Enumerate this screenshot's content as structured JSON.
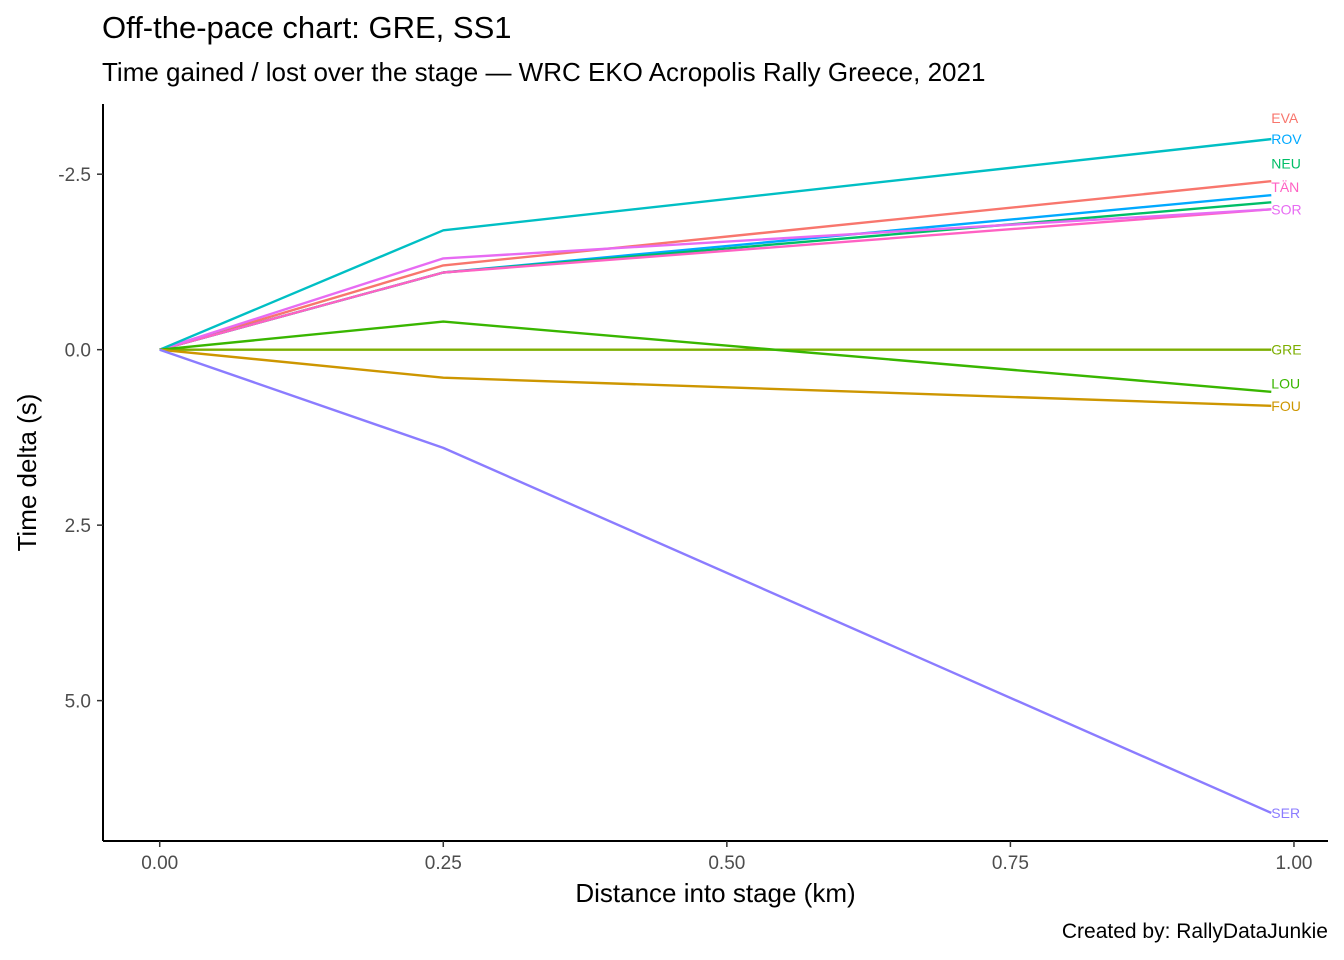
{
  "title": "Off-the-pace chart: GRE, SS1",
  "subtitle": "Time gained / lost over the stage — WRC EKO Acropolis Rally Greece, 2021",
  "caption": "Created by: RallyDataJunkie",
  "chart_data": {
    "type": "line",
    "xlabel": "Distance into stage (km)",
    "ylabel": "Time delta (s)",
    "xlim": [
      -0.05,
      1.03
    ],
    "ylim": [
      7.0,
      -3.5
    ],
    "y_reversed": true,
    "x_ticks": [
      0,
      0.25,
      0.5,
      0.75,
      1.0
    ],
    "x_tick_labels": [
      "0.00",
      "0.25",
      "0.50",
      "0.75",
      "1.00"
    ],
    "y_ticks": [
      -2.5,
      0,
      2.5,
      5.0
    ],
    "y_tick_labels": [
      "-2.5",
      "0.0",
      "2.5",
      "5.0"
    ],
    "grid": false,
    "legend": "none (direct labels at line ends)",
    "x": [
      0,
      0.25,
      0.98
    ],
    "series": [
      {
        "name": "EVA",
        "color": "#F8766D",
        "values": [
          0,
          -1.2,
          -2.4
        ]
      },
      {
        "name": "ROV",
        "color": "#00A9FF",
        "values": [
          0,
          -1.1,
          -2.2
        ]
      },
      {
        "name": "NEU",
        "color": "#00BE67",
        "values": [
          0,
          -1.1,
          -2.1
        ]
      },
      {
        "name": "TÄN",
        "color": "#FF61C3",
        "values": [
          0,
          -1.1,
          -2.0
        ]
      },
      {
        "name": "SOR",
        "color": "#E76BF3",
        "values": [
          0,
          -1.3,
          -2.0
        ]
      },
      {
        "name": "",
        "color": "#00BFC4",
        "values": [
          0,
          -1.7,
          -3.0
        ]
      },
      {
        "name": "GRE",
        "color": "#7CAE00",
        "values": [
          0,
          0,
          0
        ]
      },
      {
        "name": "LOU",
        "color": "#39B600",
        "values": [
          0,
          -0.4,
          0.6
        ]
      },
      {
        "name": "FOU",
        "color": "#CD9600",
        "values": [
          0,
          0.4,
          0.8
        ]
      },
      {
        "name": "SER",
        "color": "#8B7CFF",
        "values": [
          0,
          1.4,
          6.6
        ]
      }
    ],
    "end_labels": [
      {
        "text": "EVA",
        "color": "#F8766D",
        "y": -3.3
      },
      {
        "text": "ROV",
        "color": "#00A9FF",
        "y": -3.0
      },
      {
        "text": "NEU",
        "color": "#00BE67",
        "y": -2.65
      },
      {
        "text": "TÄN",
        "color": "#FF61C3",
        "y": -2.32
      },
      {
        "text": "SOR",
        "color": "#E76BF3",
        "y": -2.0
      },
      {
        "text": "GRE",
        "color": "#7CAE00",
        "y": 0
      },
      {
        "text": "LOU",
        "color": "#39B600",
        "y": 0.48
      },
      {
        "text": "FOU",
        "color": "#CD9600",
        "y": 0.8
      },
      {
        "text": "SER",
        "color": "#8B7CFF",
        "y": 6.6
      }
    ]
  }
}
